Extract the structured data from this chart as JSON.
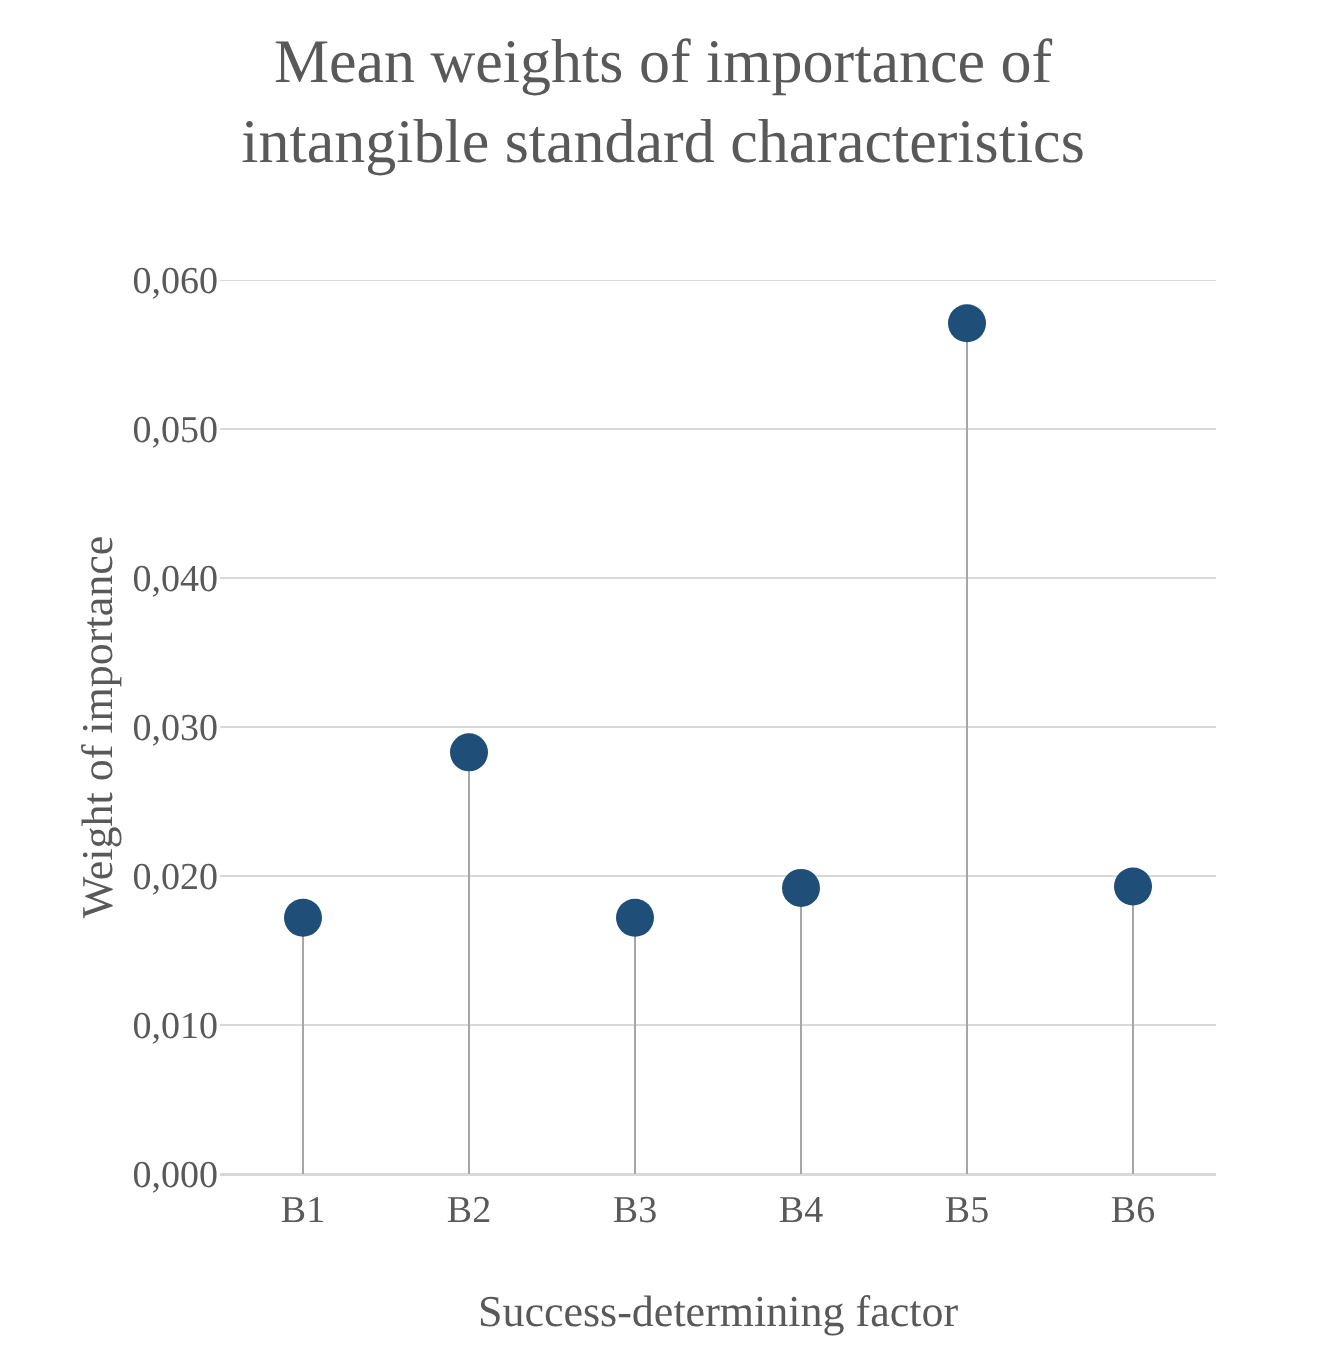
{
  "chart_data": {
    "type": "lollipop",
    "title": "Mean weights of importance of intangible standard characteristics",
    "xlabel": "Success-determining factor",
    "ylabel": "Weight of importance",
    "categories": [
      "B1",
      "B2",
      "B3",
      "B4",
      "B5",
      "B6"
    ],
    "series": [
      {
        "color": "#1f4e79",
        "values": [
          0.0172,
          0.0283,
          0.0172,
          0.0192,
          0.0571,
          0.0193
        ]
      }
    ],
    "ylim": [
      0,
      0.06
    ],
    "yticks": [
      {
        "value": 0,
        "label": "0,000"
      },
      {
        "value": 0.01,
        "label": "0,010"
      },
      {
        "value": 0.02,
        "label": "0,020"
      },
      {
        "value": 0.03,
        "label": "0,030"
      },
      {
        "value": 0.04,
        "label": "0,040"
      },
      {
        "value": 0.05,
        "label": "0,050"
      },
      {
        "value": 0.06,
        "label": "0,060"
      }
    ],
    "grid": "y",
    "marker": "circle"
  }
}
